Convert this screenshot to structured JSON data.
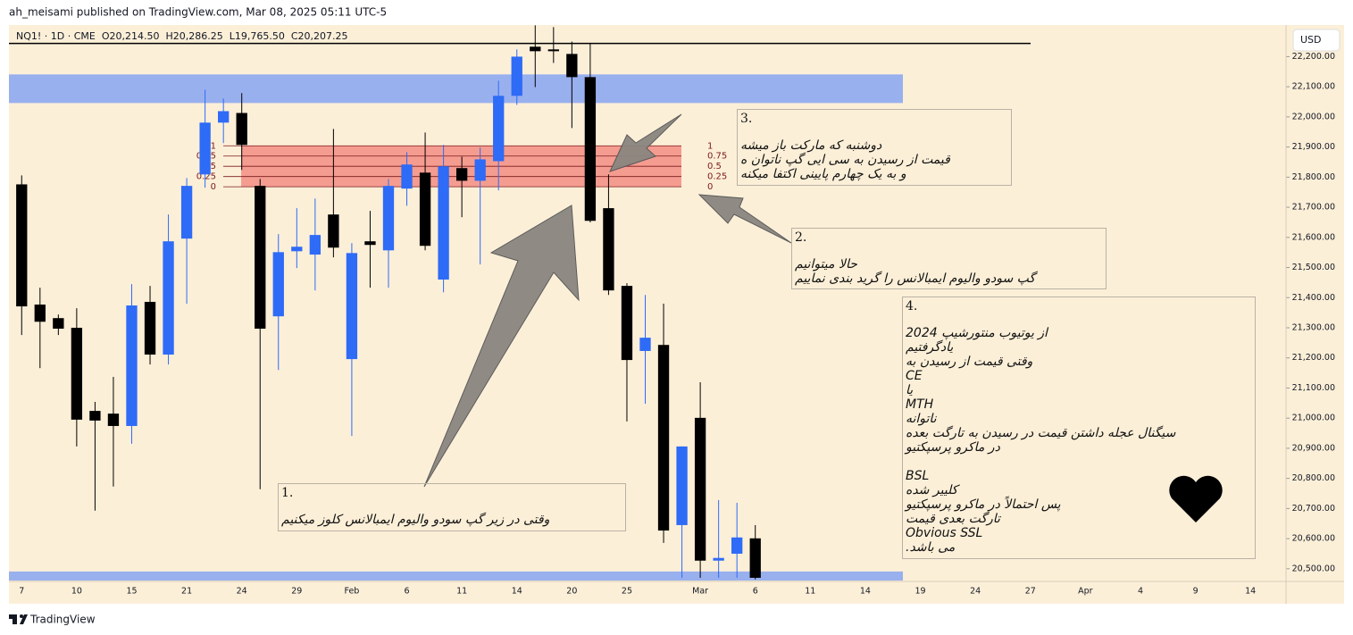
{
  "header": {
    "publisher": "ah_meisami published on TradingView.com, Mar 08, 2025 05:11 UTC-5",
    "symbol_line": "NQ1! · 1D · CME  O20,214.50  H20,286.25  L19,765.50  C20,207.25",
    "currency": "USD",
    "footer": "TradingView"
  },
  "chart_data": {
    "type": "candlestick",
    "categories": [
      "7",
      null,
      null,
      "10",
      null,
      null,
      "15",
      null,
      null,
      "21",
      null,
      null,
      "24",
      null,
      null,
      "29",
      null,
      null,
      "Feb",
      null,
      null,
      "6",
      null,
      null,
      "11",
      null,
      null,
      "14",
      null,
      null,
      "20",
      null,
      null,
      "25",
      null,
      null,
      null,
      "Mar",
      null,
      null,
      "6",
      null,
      null,
      "11",
      null,
      null,
      "14",
      null,
      null,
      "19",
      null,
      null,
      "24",
      null,
      null,
      "27",
      null,
      null,
      "Apr",
      null,
      null,
      "4",
      null,
      null,
      "9",
      null,
      null,
      "14",
      null
    ],
    "open": [
      21776,
      21377,
      21332,
      21300,
      21024,
      21015,
      20974,
      21386,
      21211,
      21596,
      21809,
      21981,
      22013,
      21771,
      21338,
      21554,
      21543,
      21676,
      21196,
      21587,
      21557,
      21762,
      21815,
      21460,
      21830,
      21788,
      21853,
      22070,
      22233,
      22224,
      22209,
      22132,
      21697,
      21439,
      21223,
      21243,
      20645,
      21001,
      20527,
      20550,
      20601,
      null,
      null,
      null,
      null,
      null,
      null,
      null,
      null,
      null,
      null,
      null,
      null,
      null,
      null,
      null,
      null,
      null,
      null,
      null,
      null,
      null,
      null,
      null,
      null,
      null,
      null,
      null,
      null
    ],
    "high": [
      21806,
      21433,
      21344,
      21365,
      21054,
      21137,
      21445,
      21439,
      21676,
      21797,
      22090,
      22061,
      22079,
      21794,
      21611,
      21697,
      21729,
      21960,
      21581,
      21688,
      21794,
      21883,
      21948,
      21907,
      21868,
      21898,
      22120,
      22224,
      22304,
      22298,
      22250,
      22244,
      21809,
      21448,
      21409,
      21380,
      20906,
      21119,
      20728,
      20719,
      20645,
      null,
      null,
      null,
      null,
      null,
      null,
      null,
      null,
      null,
      null,
      null,
      null,
      null,
      null,
      null,
      null,
      null,
      null,
      null,
      null,
      null,
      null,
      null,
      null,
      null,
      null,
      null,
      null
    ],
    "low": [
      21276,
      21166,
      21276,
      20906,
      20693,
      20773,
      20915,
      21178,
      21178,
      21380,
      21765,
      21913,
      21824,
      20764,
      21160,
      21498,
      21424,
      21534,
      20941,
      21433,
      21433,
      21705,
      21557,
      21418,
      21667,
      21510,
      21756,
      22040,
      22099,
      22179,
      21963,
      21650,
      21409,
      20989,
      21048,
      20586,
      20470,
      20470,
      20470,
      20470,
      20465,
      null,
      null,
      null,
      null,
      null,
      null,
      null,
      null,
      null,
      null,
      null,
      null,
      null,
      null,
      null,
      null,
      null,
      null,
      null,
      null,
      null,
      null,
      null,
      null,
      null,
      null,
      null,
      null
    ],
    "close": [
      21371,
      21320,
      21297,
      20995,
      20992,
      20974,
      21374,
      21211,
      21587,
      21771,
      21981,
      22019,
      21907,
      21297,
      21551,
      21569,
      21608,
      21566,
      21548,
      21575,
      21771,
      21842,
      21572,
      21836,
      21788,
      21859,
      22070,
      22200,
      22218,
      22218,
      22132,
      21655,
      21424,
      21193,
      21267,
      20627,
      20906,
      20527,
      20536,
      20604,
      20470,
      null,
      null,
      null,
      null,
      null,
      null,
      null,
      null,
      null,
      null,
      null,
      null,
      null,
      null,
      null,
      null,
      null,
      null,
      null,
      null,
      null,
      null,
      null,
      null,
      null,
      null,
      null,
      null
    ],
    "up_color": "#2e6bf6",
    "down_color": "#000000",
    "ylim": [
      20461,
      22305
    ],
    "yticks": [
      {
        "value": 20500,
        "label": "20,500.00"
      },
      {
        "value": 20600,
        "label": "20,600.00"
      },
      {
        "value": 20700,
        "label": "20,700.00"
      },
      {
        "value": 20800,
        "label": "20,800.00"
      },
      {
        "value": 20900,
        "label": "20,900.00"
      },
      {
        "value": 21000,
        "label": "21,000.00"
      },
      {
        "value": 21100,
        "label": "21,100.00"
      },
      {
        "value": 21200,
        "label": "21,200.00"
      },
      {
        "value": 21300,
        "label": "21,300.00"
      },
      {
        "value": 21400,
        "label": "21,400.00"
      },
      {
        "value": 21500,
        "label": "21,500.00"
      },
      {
        "value": 21600,
        "label": "21,600.00"
      },
      {
        "value": 21700,
        "label": "21,700.00"
      },
      {
        "value": 21800,
        "label": "21,800.00"
      },
      {
        "value": 21900,
        "label": "21,900.00"
      },
      {
        "value": 22000,
        "label": "22,000.00"
      },
      {
        "value": 22100,
        "label": "22,100.00"
      },
      {
        "value": 22200,
        "label": "22,200.00"
      }
    ],
    "grid": false,
    "hline": 22244,
    "zones": [
      {
        "top": 22141,
        "bottom": 22046,
        "color": "#8ea8f2"
      },
      {
        "top": 21904,
        "bottom": 21768,
        "color": "#f4928a"
      },
      {
        "top": 20491,
        "bottom": 20461,
        "color": "#8ea8f2"
      }
    ],
    "fib_levels": [
      {
        "ratio": 1,
        "price": 21904
      },
      {
        "ratio": 0.75,
        "price": 21870
      },
      {
        "ratio": 0.5,
        "price": 21836
      },
      {
        "ratio": 0.25,
        "price": 21802
      },
      {
        "ratio": 0,
        "price": 21768
      }
    ],
    "annotations": [
      {
        "number": "1.",
        "lines": [
          "وقتی در زیر گپ سودو والیوم ایمبالانس کلوز میکنیم"
        ]
      },
      {
        "number": "2.",
        "lines": [
          "حالا میتوانیم",
          "گپ سودو والیوم ایمبالانس را گرید بندی نماییم"
        ]
      },
      {
        "number": "3.",
        "lines": [
          "دوشنبه که مارکت باز میشه",
          "قیمت از رسیدن به سی ایی گپ ناتوان ه",
          "و به یک چهارم پایینی اکتفا میکنه"
        ]
      },
      {
        "number": "4.",
        "lines": [
          "از یوتیوب منتورشیپ 2024",
          "یادگرفتیم",
          "وقتی قیمت از رسیدن به",
          "CE",
          "یا",
          "MTH",
          "ناتوانه",
          "سیگنال عجله داشتن قیمت در رسیدن به تارگت بعده",
          "در ماکرو پرسپکتیو",
          "BSL",
          "کلییر شده",
          "پس احتمالاً در ماکرو پرسپکتیو",
          "تارگت بعدی قیمت",
          "Obvious SSL",
          "می باشد."
        ]
      }
    ]
  }
}
